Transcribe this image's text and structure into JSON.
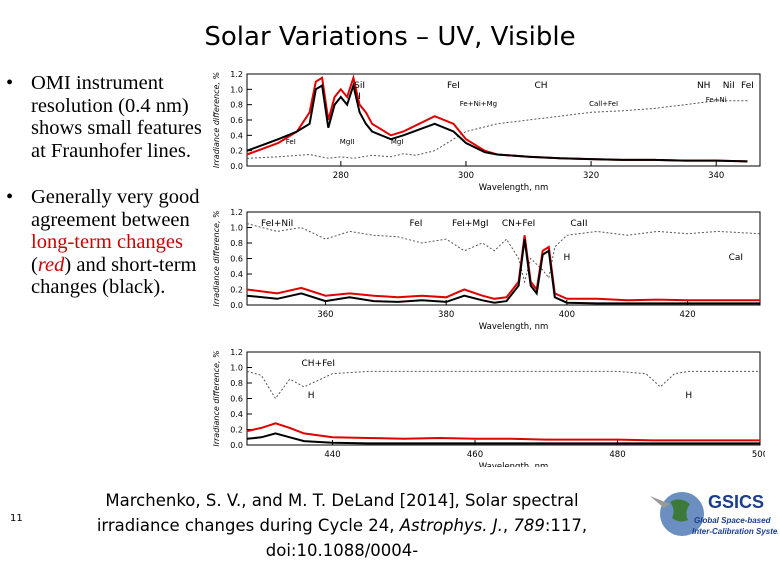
{
  "slide": {
    "title": "Solar Variations – UV, Visible",
    "number": "11"
  },
  "bullets": [
    {
      "text": "OMI instrument resolution (0.4 nm) shows small features at Fraunhofer lines."
    },
    {
      "text_pre": "Generally very good agreement between ",
      "red1": "long-term changes",
      "mid": " (",
      "red2": "red",
      "post": ") and short-term changes (black)."
    }
  ],
  "citation": {
    "part1": "Marchenko, S. V., and M. T. DeLand [2014], Solar spectral irradiance changes during Cycle 24, ",
    "journal": "Astrophys. J.",
    "part2": ", ",
    "volume": "789",
    "part3": ":117, doi:10.1088/0004-"
  },
  "logo": {
    "name": "GSICS",
    "line1": "Global Space-based",
    "line2": "Inter-Calibration System"
  },
  "colors": {
    "long_term": "#e00000",
    "short_term": "#000000",
    "ratio": "#555555"
  },
  "chart_data": [
    {
      "type": "line",
      "ylabel": "Irradiance difference, %",
      "xlabel": "Wavelength, nm",
      "xlim": [
        265,
        347
      ],
      "ylim": [
        0,
        1.2
      ],
      "yticks": [
        "0.0",
        "0.2",
        "0.4",
        "0.6",
        "0.8",
        "1.0",
        "1.2"
      ],
      "xticks": [
        280,
        300,
        320,
        340
      ],
      "annotations": [
        "SiI",
        "I",
        "FeI",
        "CH",
        "NH",
        "NiI",
        "FeI",
        "Fe+Ni+Mg",
        "Call+FeI",
        "Fe+Ni",
        "FeI",
        "MgII",
        "MgI"
      ],
      "series": [
        {
          "key": "ratio",
          "x": [
            265,
            270,
            275,
            278,
            280,
            282,
            285,
            288,
            290,
            292,
            295,
            300,
            305,
            310,
            315,
            320,
            325,
            330,
            335,
            340,
            345
          ],
          "y": [
            0.1,
            0.12,
            0.15,
            0.1,
            0.12,
            0.1,
            0.14,
            0.12,
            0.16,
            0.14,
            0.2,
            0.45,
            0.55,
            0.6,
            0.65,
            0.7,
            0.72,
            0.75,
            0.8,
            0.85,
            0.85
          ]
        },
        {
          "key": "long",
          "x": [
            265,
            270,
            273,
            275,
            276,
            277,
            278,
            279,
            280,
            281,
            282,
            283,
            284,
            285,
            288,
            290,
            295,
            298,
            300,
            303,
            305,
            310,
            315,
            320,
            325,
            330,
            335,
            340,
            345
          ],
          "y": [
            0.15,
            0.3,
            0.45,
            0.7,
            1.1,
            1.15,
            0.6,
            0.9,
            1.0,
            0.9,
            1.15,
            0.8,
            0.7,
            0.55,
            0.4,
            0.45,
            0.65,
            0.55,
            0.35,
            0.2,
            0.15,
            0.12,
            0.1,
            0.09,
            0.08,
            0.08,
            0.07,
            0.07,
            0.06
          ]
        },
        {
          "key": "short",
          "x": [
            265,
            270,
            273,
            275,
            276,
            277,
            278,
            279,
            280,
            281,
            282,
            283,
            284,
            285,
            288,
            290,
            295,
            298,
            300,
            303,
            305,
            310,
            315,
            320,
            325,
            330,
            335,
            340,
            345
          ],
          "y": [
            0.2,
            0.35,
            0.45,
            0.55,
            1.0,
            1.05,
            0.5,
            0.8,
            0.9,
            0.8,
            1.05,
            0.7,
            0.55,
            0.45,
            0.35,
            0.4,
            0.55,
            0.45,
            0.3,
            0.18,
            0.15,
            0.12,
            0.1,
            0.09,
            0.08,
            0.08,
            0.07,
            0.07,
            0.06
          ]
        }
      ]
    },
    {
      "type": "line",
      "ylabel": "Irradiance difference, %",
      "xlabel": "Wavelength, nm",
      "xlim": [
        347,
        432
      ],
      "ylim": [
        0,
        1.2
      ],
      "yticks": [
        "0.0",
        "0.2",
        "0.4",
        "0.6",
        "0.8",
        "1.0",
        "1.2"
      ],
      "xticks": [
        360,
        380,
        400,
        420
      ],
      "annotations": [
        "FeI+NiI",
        "FeI",
        "FeI+MgI",
        "CN+FeI",
        "CaII",
        "H",
        "CaI"
      ],
      "series": [
        {
          "key": "ratio",
          "x": [
            347,
            352,
            356,
            360,
            364,
            368,
            372,
            376,
            380,
            383,
            386,
            388,
            390,
            392,
            393,
            394,
            396,
            397,
            398,
            400,
            405,
            410,
            415,
            420,
            425,
            432
          ],
          "y": [
            1.05,
            0.95,
            1.0,
            0.85,
            0.95,
            0.9,
            0.88,
            0.8,
            0.85,
            0.7,
            0.8,
            0.7,
            0.85,
            0.6,
            0.3,
            0.6,
            0.45,
            0.35,
            0.75,
            0.9,
            0.95,
            0.9,
            0.95,
            0.92,
            0.95,
            0.92
          ]
        },
        {
          "key": "long",
          "x": [
            347,
            352,
            356,
            360,
            364,
            368,
            372,
            376,
            380,
            383,
            386,
            388,
            390,
            392,
            393,
            394,
            395,
            396,
            397,
            398,
            400,
            405,
            410,
            415,
            420,
            425,
            432
          ],
          "y": [
            0.2,
            0.15,
            0.22,
            0.12,
            0.15,
            0.12,
            0.1,
            0.12,
            0.1,
            0.2,
            0.12,
            0.08,
            0.1,
            0.3,
            0.9,
            0.3,
            0.2,
            0.7,
            0.75,
            0.15,
            0.08,
            0.08,
            0.06,
            0.07,
            0.06,
            0.06,
            0.06
          ]
        },
        {
          "key": "short",
          "x": [
            347,
            352,
            356,
            360,
            364,
            368,
            372,
            376,
            380,
            383,
            386,
            388,
            390,
            392,
            393,
            394,
            395,
            396,
            397,
            398,
            400,
            405,
            410,
            415,
            420,
            425,
            432
          ],
          "y": [
            0.12,
            0.08,
            0.15,
            0.05,
            0.1,
            0.05,
            0.04,
            0.06,
            0.04,
            0.12,
            0.06,
            0.03,
            0.05,
            0.25,
            0.85,
            0.25,
            0.15,
            0.65,
            0.7,
            0.1,
            0.03,
            0.02,
            0.02,
            0.02,
            0.02,
            0.02,
            0.02
          ]
        }
      ]
    },
    {
      "type": "line",
      "ylabel": "Irradiance difference, %",
      "xlabel": "Wavelength, nm",
      "xlim": [
        428,
        500
      ],
      "ylim": [
        0,
        1.2
      ],
      "yticks": [
        "0.0",
        "0.2",
        "0.4",
        "0.6",
        "0.8",
        "1.0",
        "1.2"
      ],
      "xticks": [
        440,
        460,
        480,
        500
      ],
      "annotations": [
        "CH+FeI",
        "H",
        "H"
      ],
      "series": [
        {
          "key": "ratio",
          "x": [
            428,
            430,
            432,
            434,
            436,
            440,
            445,
            450,
            455,
            460,
            465,
            470,
            475,
            480,
            484,
            486,
            488,
            490,
            495,
            500
          ],
          "y": [
            0.95,
            0.9,
            0.6,
            0.85,
            0.75,
            0.92,
            0.95,
            0.95,
            0.95,
            0.95,
            0.95,
            0.95,
            0.95,
            0.95,
            0.92,
            0.75,
            0.92,
            0.95,
            0.95,
            0.95
          ]
        },
        {
          "key": "long",
          "x": [
            428,
            430,
            432,
            434,
            436,
            440,
            445,
            450,
            455,
            460,
            465,
            470,
            475,
            480,
            485,
            490,
            495,
            500
          ],
          "y": [
            0.18,
            0.22,
            0.28,
            0.22,
            0.15,
            0.1,
            0.09,
            0.08,
            0.09,
            0.08,
            0.08,
            0.07,
            0.07,
            0.07,
            0.06,
            0.06,
            0.06,
            0.06
          ]
        },
        {
          "key": "short",
          "x": [
            428,
            430,
            432,
            434,
            436,
            440,
            445,
            450,
            455,
            460,
            465,
            470,
            475,
            480,
            485,
            490,
            495,
            500
          ],
          "y": [
            0.08,
            0.1,
            0.15,
            0.1,
            0.05,
            0.03,
            0.02,
            0.02,
            0.02,
            0.02,
            0.02,
            0.02,
            0.02,
            0.02,
            0.02,
            0.02,
            0.02,
            0.02
          ]
        }
      ]
    }
  ]
}
